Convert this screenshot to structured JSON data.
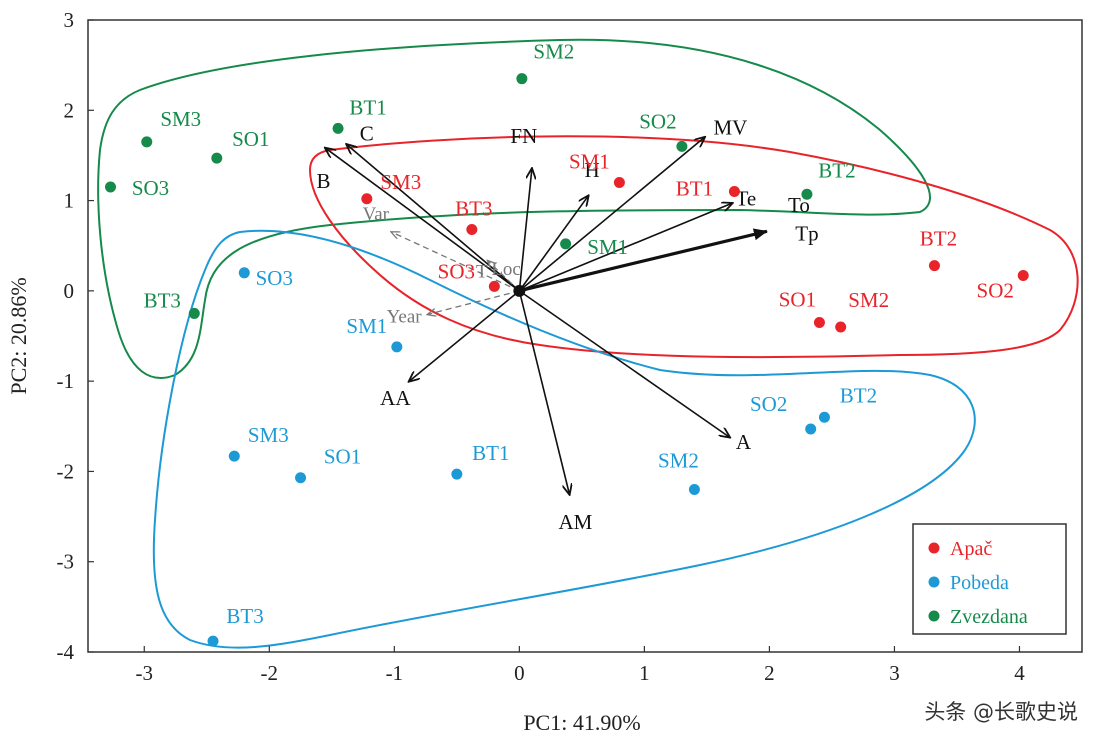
{
  "chart_data": {
    "type": "scatter",
    "subtype": "pca-biplot",
    "xlabel": "PC1: 41.90%",
    "ylabel": "PC2: 20.86%",
    "xlim": [
      -3.45,
      4.5
    ],
    "ylim": [
      -4.0,
      3.0
    ],
    "xticks": [
      -3,
      -2,
      -1,
      0,
      1,
      2,
      3,
      4
    ],
    "yticks": [
      -4,
      -3,
      -2,
      -1,
      0,
      1,
      2,
      3
    ],
    "xtick_labels": [
      "-3",
      "-2",
      "-1",
      "0",
      "1",
      "2",
      "3",
      "4"
    ],
    "ytick_labels": [
      "-4",
      "-3",
      "-2",
      "-1",
      "0",
      "1",
      "2",
      "3"
    ],
    "grid": false,
    "legend_position": "bottom-right",
    "series": [
      {
        "name": "Apač",
        "color": "#e8242a",
        "points": [
          {
            "label": "SM3",
            "x": -1.22,
            "y": 1.02
          },
          {
            "label": "BT3",
            "x": -0.38,
            "y": 0.68
          },
          {
            "label": "SO3",
            "x": -0.2,
            "y": 0.05
          },
          {
            "label": "SM1",
            "x": 0.8,
            "y": 1.2
          },
          {
            "label": "BT1",
            "x": 1.72,
            "y": 1.1
          },
          {
            "label": "BT2",
            "x": 3.32,
            "y": 0.28
          },
          {
            "label": "SO2",
            "x": 4.03,
            "y": 0.17
          },
          {
            "label": "SO1",
            "x": 2.4,
            "y": -0.35
          },
          {
            "label": "SM2",
            "x": 2.57,
            "y": -0.4
          }
        ]
      },
      {
        "name": "Pobeda",
        "color": "#1d9ad6",
        "points": [
          {
            "label": "SO3",
            "x": -2.2,
            "y": 0.2
          },
          {
            "label": "SM1",
            "x": -0.98,
            "y": -0.62
          },
          {
            "label": "SM3",
            "x": -2.28,
            "y": -1.83
          },
          {
            "label": "SO1",
            "x": -1.75,
            "y": -2.07
          },
          {
            "label": "BT1",
            "x": -0.5,
            "y": -2.03
          },
          {
            "label": "SO2",
            "x": 2.33,
            "y": -1.53
          },
          {
            "label": "BT2",
            "x": 2.44,
            "y": -1.4
          },
          {
            "label": "SM2",
            "x": 1.4,
            "y": -2.2
          },
          {
            "label": "BT3",
            "x": -2.45,
            "y": -3.88
          }
        ]
      },
      {
        "name": "Zvezdana",
        "color": "#168a4a",
        "points": [
          {
            "label": "SM3",
            "x": -2.98,
            "y": 1.65
          },
          {
            "label": "SO1",
            "x": -2.42,
            "y": 1.47
          },
          {
            "label": "BT1",
            "x": -1.45,
            "y": 1.8
          },
          {
            "label": "SM2",
            "x": 0.02,
            "y": 2.35
          },
          {
            "label": "SO3",
            "x": -3.27,
            "y": 1.15
          },
          {
            "label": "SO2",
            "x": 1.3,
            "y": 1.6
          },
          {
            "label": "BT2",
            "x": 2.3,
            "y": 1.07
          },
          {
            "label": "SM1",
            "x": 0.37,
            "y": 0.52
          },
          {
            "label": "BT3",
            "x": -2.6,
            "y": -0.25
          }
        ]
      }
    ],
    "loadings": [
      {
        "name": "FN",
        "x": 0.1,
        "y": 1.35
      },
      {
        "name": "MV",
        "x": 1.48,
        "y": 1.7
      },
      {
        "name": "H",
        "x": 0.55,
        "y": 1.05
      },
      {
        "name": "Te",
        "x": 1.7,
        "y": 0.97
      },
      {
        "name": "To",
        "x": 1.98,
        "y": 0.72
      },
      {
        "name": "Tp",
        "x": 1.98,
        "y": 0.66
      },
      {
        "name": "C",
        "x": -1.38,
        "y": 1.62
      },
      {
        "name": "B",
        "x": -1.55,
        "y": 1.58
      },
      {
        "name": "AA",
        "x": -0.88,
        "y": -1.0
      },
      {
        "name": "A",
        "x": 1.68,
        "y": -1.62
      },
      {
        "name": "AM",
        "x": 0.4,
        "y": -2.25
      }
    ],
    "supplementary": [
      {
        "name": "Var",
        "x": -1.02,
        "y": 0.65
      },
      {
        "name": "Loc",
        "x": -0.25,
        "y": 0.33
      },
      {
        "name": "T",
        "x": -0.22,
        "y": 0.18
      },
      {
        "name": "Year",
        "x": -0.73,
        "y": -0.26
      }
    ]
  },
  "watermark": "头条 @长歌史说"
}
